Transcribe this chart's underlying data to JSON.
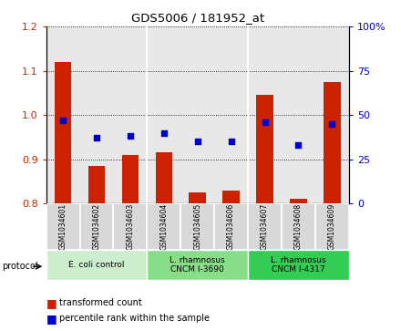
{
  "title": "GDS5006 / 181952_at",
  "samples": [
    "GSM1034601",
    "GSM1034602",
    "GSM1034603",
    "GSM1034604",
    "GSM1034605",
    "GSM1034606",
    "GSM1034607",
    "GSM1034608",
    "GSM1034609"
  ],
  "transformed_count": [
    1.12,
    0.885,
    0.91,
    0.915,
    0.825,
    0.83,
    1.045,
    0.81,
    1.075
  ],
  "percentile_rank": [
    47,
    37,
    38,
    40,
    35,
    35,
    46,
    33,
    45
  ],
  "ylim_left": [
    0.8,
    1.2
  ],
  "ylim_right": [
    0,
    100
  ],
  "yticks_left": [
    0.8,
    0.9,
    1.0,
    1.1,
    1.2
  ],
  "yticks_right": [
    0,
    25,
    50,
    75,
    100
  ],
  "ytick_right_labels": [
    "0",
    "25",
    "50",
    "75",
    "100%"
  ],
  "groups": [
    {
      "label": "E. coli control",
      "indices": [
        0,
        1,
        2
      ],
      "color": "#cceecc"
    },
    {
      "label": "L. rhamnosus\nCNCM I-3690",
      "indices": [
        3,
        4,
        5
      ],
      "color": "#88dd88"
    },
    {
      "label": "L. rhamnosus\nCNCM I-4317",
      "indices": [
        6,
        7,
        8
      ],
      "color": "#33cc55"
    }
  ],
  "bar_color": "#cc2200",
  "dot_color": "#0000cc",
  "bar_width": 0.5,
  "background_color": "#ffffff",
  "plot_bg_color": "#e8e8e8",
  "tick_box_color": "#d8d8d8",
  "legend_items": [
    "transformed count",
    "percentile rank within the sample"
  ]
}
